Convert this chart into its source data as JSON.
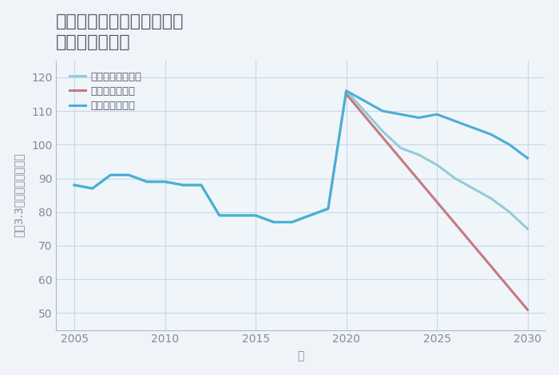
{
  "title_line1": "兵庫県尼崎市南武庫之荘の",
  "title_line2": "土地の価格推移",
  "xlabel": "年",
  "ylabel": "坪（3.3㎡）単価（万円）",
  "ylim": [
    45,
    125
  ],
  "xlim": [
    2004,
    2031
  ],
  "yticks": [
    50,
    60,
    70,
    80,
    90,
    100,
    110,
    120
  ],
  "xticks": [
    2005,
    2010,
    2015,
    2020,
    2025,
    2030
  ],
  "background_color": "#f0f4f8",
  "plot_bg_color": "#f0f5fa",
  "grid_color": "#c5d8ea",
  "good_scenario": {
    "label": "グッドシナリオ",
    "color": "#4aafd4",
    "years": [
      2005,
      2006,
      2007,
      2008,
      2009,
      2010,
      2011,
      2012,
      2013,
      2014,
      2015,
      2016,
      2017,
      2018,
      2019,
      2020,
      2021,
      2022,
      2023,
      2024,
      2025,
      2026,
      2027,
      2028,
      2029,
      2030
    ],
    "values": [
      88,
      87,
      91,
      91,
      89,
      89,
      88,
      88,
      79,
      79,
      79,
      77,
      77,
      79,
      81,
      116,
      113,
      110,
      109,
      108,
      109,
      107,
      105,
      103,
      100,
      96
    ]
  },
  "bad_scenario": {
    "label": "バッドシナリオ",
    "color": "#c47a80",
    "years": [
      2020,
      2030
    ],
    "values": [
      115,
      51
    ]
  },
  "normal_scenario": {
    "label": "ノーマルシナリオ",
    "color": "#92ccd8",
    "years": [
      2005,
      2006,
      2007,
      2008,
      2009,
      2010,
      2011,
      2012,
      2013,
      2014,
      2015,
      2016,
      2017,
      2018,
      2019,
      2020,
      2021,
      2022,
      2023,
      2024,
      2025,
      2026,
      2027,
      2028,
      2029,
      2030
    ],
    "values": [
      88,
      87,
      91,
      91,
      89,
      89,
      88,
      88,
      79,
      79,
      79,
      77,
      77,
      79,
      81,
      116,
      110,
      104,
      99,
      97,
      94,
      90,
      87,
      84,
      80,
      75
    ]
  },
  "title_color": "#555566",
  "axis_color": "#888899",
  "legend_text_color": "#555566",
  "tick_fontsize": 10,
  "legend_fontsize": 9.5,
  "axis_label_fontsize": 10,
  "title_fontsize": 16
}
